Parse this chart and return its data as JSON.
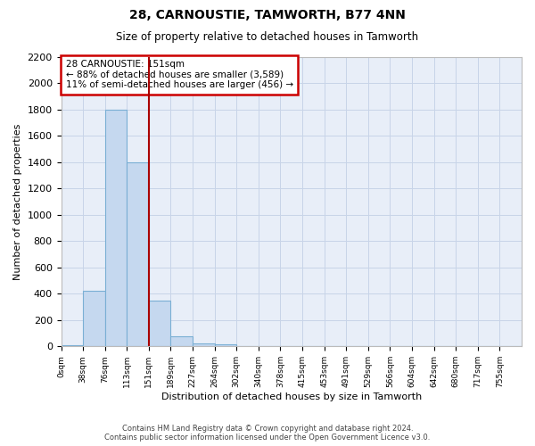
{
  "title": "28, CARNOUSTIE, TAMWORTH, B77 4NN",
  "subtitle": "Size of property relative to detached houses in Tamworth",
  "xlabel": "Distribution of detached houses by size in Tamworth",
  "ylabel": "Number of detached properties",
  "footer_line1": "Contains HM Land Registry data © Crown copyright and database right 2024.",
  "footer_line2": "Contains public sector information licensed under the Open Government Licence v3.0.",
  "bar_labels": [
    "0sqm",
    "38sqm",
    "76sqm",
    "113sqm",
    "151sqm",
    "189sqm",
    "227sqm",
    "264sqm",
    "302sqm",
    "340sqm",
    "378sqm",
    "415sqm",
    "453sqm",
    "491sqm",
    "529sqm",
    "566sqm",
    "604sqm",
    "642sqm",
    "680sqm",
    "717sqm",
    "755sqm"
  ],
  "bar_values": [
    10,
    420,
    1800,
    1400,
    350,
    75,
    25,
    15,
    0,
    0,
    0,
    0,
    0,
    0,
    0,
    0,
    0,
    0,
    0,
    0,
    0
  ],
  "bar_color": "#c5d8ef",
  "bar_edge_color": "#7aafd4",
  "vline_color": "#aa0000",
  "vline_x_bin": 4,
  "annotation_text": "28 CARNOUSTIE: 151sqm\n← 88% of detached houses are smaller (3,589)\n11% of semi-detached houses are larger (456) →",
  "annotation_box_color": "#cc0000",
  "ylim": [
    0,
    2200
  ],
  "yticks": [
    0,
    200,
    400,
    600,
    800,
    1000,
    1200,
    1400,
    1600,
    1800,
    2000,
    2200
  ],
  "grid_color": "#c8d4e8",
  "background_color": "#e8eef8",
  "bin_width": 1
}
